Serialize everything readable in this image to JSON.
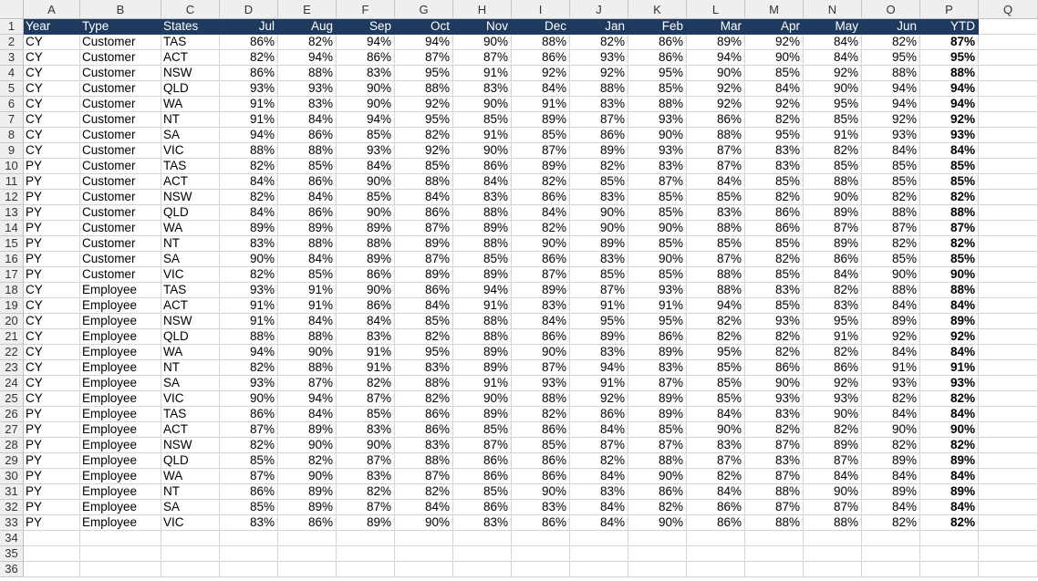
{
  "columns": [
    "A",
    "B",
    "C",
    "D",
    "E",
    "F",
    "G",
    "H",
    "I",
    "J",
    "K",
    "L",
    "M",
    "N",
    "O",
    "P",
    "Q"
  ],
  "header": [
    "Year",
    "Type",
    "States",
    "Jul",
    "Aug",
    "Sep",
    "Oct",
    "Nov",
    "Dec",
    "Jan",
    "Feb",
    "Mar",
    "Apr",
    "May",
    "Jun",
    "YTD"
  ],
  "rows": [
    [
      "CY",
      "Customer",
      "TAS",
      "86%",
      "82%",
      "94%",
      "94%",
      "90%",
      "88%",
      "82%",
      "86%",
      "89%",
      "92%",
      "84%",
      "82%",
      "87%"
    ],
    [
      "CY",
      "Customer",
      "ACT",
      "82%",
      "94%",
      "86%",
      "87%",
      "87%",
      "86%",
      "93%",
      "86%",
      "94%",
      "90%",
      "84%",
      "95%",
      "95%"
    ],
    [
      "CY",
      "Customer",
      "NSW",
      "86%",
      "88%",
      "83%",
      "95%",
      "91%",
      "92%",
      "92%",
      "95%",
      "90%",
      "85%",
      "92%",
      "88%",
      "88%"
    ],
    [
      "CY",
      "Customer",
      "QLD",
      "93%",
      "93%",
      "90%",
      "88%",
      "83%",
      "84%",
      "88%",
      "85%",
      "92%",
      "84%",
      "90%",
      "94%",
      "94%"
    ],
    [
      "CY",
      "Customer",
      "WA",
      "91%",
      "83%",
      "90%",
      "92%",
      "90%",
      "91%",
      "83%",
      "88%",
      "92%",
      "92%",
      "95%",
      "94%",
      "94%"
    ],
    [
      "CY",
      "Customer",
      "NT",
      "91%",
      "84%",
      "94%",
      "95%",
      "85%",
      "89%",
      "87%",
      "93%",
      "86%",
      "82%",
      "85%",
      "92%",
      "92%"
    ],
    [
      "CY",
      "Customer",
      "SA",
      "94%",
      "86%",
      "85%",
      "82%",
      "91%",
      "85%",
      "86%",
      "90%",
      "88%",
      "95%",
      "91%",
      "93%",
      "93%"
    ],
    [
      "CY",
      "Customer",
      "VIC",
      "88%",
      "88%",
      "93%",
      "92%",
      "90%",
      "87%",
      "89%",
      "93%",
      "87%",
      "83%",
      "82%",
      "84%",
      "84%"
    ],
    [
      "PY",
      "Customer",
      "TAS",
      "82%",
      "85%",
      "84%",
      "85%",
      "86%",
      "89%",
      "82%",
      "83%",
      "87%",
      "83%",
      "85%",
      "85%",
      "85%"
    ],
    [
      "PY",
      "Customer",
      "ACT",
      "84%",
      "86%",
      "90%",
      "88%",
      "84%",
      "82%",
      "85%",
      "87%",
      "84%",
      "85%",
      "88%",
      "85%",
      "85%"
    ],
    [
      "PY",
      "Customer",
      "NSW",
      "82%",
      "84%",
      "85%",
      "84%",
      "83%",
      "86%",
      "83%",
      "85%",
      "85%",
      "82%",
      "90%",
      "82%",
      "82%"
    ],
    [
      "PY",
      "Customer",
      "QLD",
      "84%",
      "86%",
      "90%",
      "86%",
      "88%",
      "84%",
      "90%",
      "85%",
      "83%",
      "86%",
      "89%",
      "88%",
      "88%"
    ],
    [
      "PY",
      "Customer",
      "WA",
      "89%",
      "89%",
      "89%",
      "87%",
      "89%",
      "82%",
      "90%",
      "90%",
      "88%",
      "86%",
      "87%",
      "87%",
      "87%"
    ],
    [
      "PY",
      "Customer",
      "NT",
      "83%",
      "88%",
      "88%",
      "89%",
      "88%",
      "90%",
      "89%",
      "85%",
      "85%",
      "85%",
      "89%",
      "82%",
      "82%"
    ],
    [
      "PY",
      "Customer",
      "SA",
      "90%",
      "84%",
      "89%",
      "87%",
      "85%",
      "86%",
      "83%",
      "90%",
      "87%",
      "82%",
      "86%",
      "85%",
      "85%"
    ],
    [
      "PY",
      "Customer",
      "VIC",
      "82%",
      "85%",
      "86%",
      "89%",
      "89%",
      "87%",
      "85%",
      "85%",
      "88%",
      "85%",
      "84%",
      "90%",
      "90%"
    ],
    [
      "CY",
      "Employee",
      "TAS",
      "93%",
      "91%",
      "90%",
      "86%",
      "94%",
      "89%",
      "87%",
      "93%",
      "88%",
      "83%",
      "82%",
      "88%",
      "88%"
    ],
    [
      "CY",
      "Employee",
      "ACT",
      "91%",
      "91%",
      "86%",
      "84%",
      "91%",
      "83%",
      "91%",
      "91%",
      "94%",
      "85%",
      "83%",
      "84%",
      "84%"
    ],
    [
      "CY",
      "Employee",
      "NSW",
      "91%",
      "84%",
      "84%",
      "85%",
      "88%",
      "84%",
      "95%",
      "95%",
      "82%",
      "93%",
      "95%",
      "89%",
      "89%"
    ],
    [
      "CY",
      "Employee",
      "QLD",
      "88%",
      "88%",
      "83%",
      "82%",
      "88%",
      "86%",
      "89%",
      "86%",
      "82%",
      "82%",
      "91%",
      "92%",
      "92%"
    ],
    [
      "CY",
      "Employee",
      "WA",
      "94%",
      "90%",
      "91%",
      "95%",
      "89%",
      "90%",
      "83%",
      "89%",
      "95%",
      "82%",
      "82%",
      "84%",
      "84%"
    ],
    [
      "CY",
      "Employee",
      "NT",
      "82%",
      "88%",
      "91%",
      "83%",
      "89%",
      "87%",
      "94%",
      "83%",
      "85%",
      "86%",
      "86%",
      "91%",
      "91%"
    ],
    [
      "CY",
      "Employee",
      "SA",
      "93%",
      "87%",
      "82%",
      "88%",
      "91%",
      "93%",
      "91%",
      "87%",
      "85%",
      "90%",
      "92%",
      "93%",
      "93%"
    ],
    [
      "CY",
      "Employee",
      "VIC",
      "90%",
      "94%",
      "87%",
      "82%",
      "90%",
      "88%",
      "92%",
      "89%",
      "85%",
      "93%",
      "93%",
      "82%",
      "82%"
    ],
    [
      "PY",
      "Employee",
      "TAS",
      "86%",
      "84%",
      "85%",
      "86%",
      "89%",
      "82%",
      "86%",
      "89%",
      "84%",
      "83%",
      "90%",
      "84%",
      "84%"
    ],
    [
      "PY",
      "Employee",
      "ACT",
      "87%",
      "89%",
      "83%",
      "86%",
      "85%",
      "86%",
      "84%",
      "85%",
      "90%",
      "82%",
      "82%",
      "90%",
      "90%"
    ],
    [
      "PY",
      "Employee",
      "NSW",
      "82%",
      "90%",
      "90%",
      "83%",
      "87%",
      "85%",
      "87%",
      "87%",
      "83%",
      "87%",
      "89%",
      "82%",
      "82%"
    ],
    [
      "PY",
      "Employee",
      "QLD",
      "85%",
      "82%",
      "87%",
      "88%",
      "86%",
      "86%",
      "82%",
      "88%",
      "87%",
      "83%",
      "87%",
      "89%",
      "89%"
    ],
    [
      "PY",
      "Employee",
      "WA",
      "87%",
      "90%",
      "83%",
      "87%",
      "86%",
      "86%",
      "84%",
      "90%",
      "82%",
      "87%",
      "84%",
      "84%",
      "84%"
    ],
    [
      "PY",
      "Employee",
      "NT",
      "86%",
      "89%",
      "82%",
      "82%",
      "85%",
      "90%",
      "83%",
      "86%",
      "84%",
      "88%",
      "90%",
      "89%",
      "89%"
    ],
    [
      "PY",
      "Employee",
      "SA",
      "85%",
      "89%",
      "87%",
      "84%",
      "86%",
      "83%",
      "84%",
      "82%",
      "86%",
      "87%",
      "87%",
      "84%",
      "84%"
    ],
    [
      "PY",
      "Employee",
      "VIC",
      "83%",
      "86%",
      "89%",
      "90%",
      "83%",
      "86%",
      "84%",
      "90%",
      "86%",
      "88%",
      "88%",
      "82%",
      "82%"
    ]
  ],
  "row_numbers": [
    "1",
    "2",
    "3",
    "4",
    "5",
    "6",
    "7",
    "8",
    "9",
    "10",
    "11",
    "12",
    "13",
    "14",
    "15",
    "16",
    "17",
    "18",
    "19",
    "20",
    "21",
    "22",
    "23",
    "24",
    "25",
    "26",
    "27",
    "28",
    "29",
    "30",
    "31",
    "32",
    "33",
    "34",
    "35",
    "36"
  ],
  "colors": {
    "header_bg": "#1f3a5f",
    "header_fg": "#ffffff",
    "grid": "#d4d4d4",
    "chrome": "#efefef"
  }
}
